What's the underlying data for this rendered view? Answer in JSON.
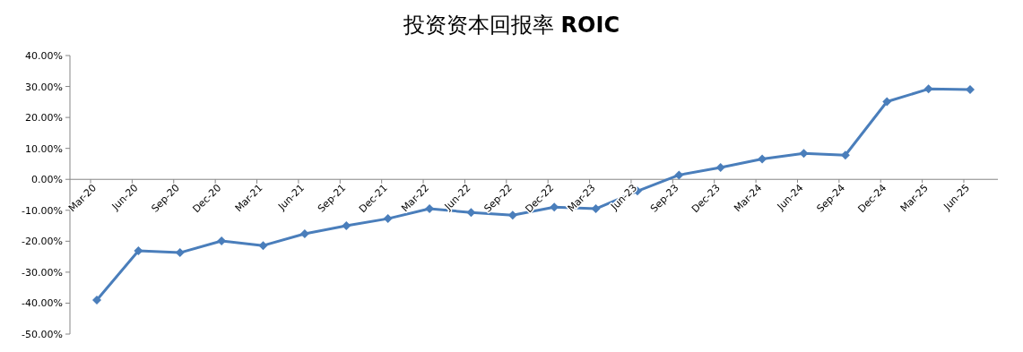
{
  "chart_data": {
    "type": "line",
    "title": "投资资本回报率 **ROIC**",
    "categories": [
      "Mar-20",
      "Jun-20",
      "Sep-20",
      "Dec-20",
      "Mar-21",
      "Jun-21",
      "Sep-21",
      "Dec-21",
      "Mar-22",
      "Jun-22",
      "Sep-22",
      "Dec-22",
      "Mar-23",
      "Jun-23",
      "Sep-23",
      "Dec-23",
      "Mar-24",
      "Jun-24",
      "Sep-24",
      "Dec-24",
      "Mar-25",
      "Jun-25"
    ],
    "series": [
      {
        "color": "#4a7ebb",
        "values": [
          -39.0,
          -23.1,
          -23.7,
          -19.9,
          -21.4,
          -17.6,
          -15.0,
          -12.7,
          -9.5,
          -10.7,
          -11.6,
          -9.0,
          -9.5,
          -3.8,
          1.4,
          3.8,
          6.6,
          8.4,
          7.8,
          25.1,
          29.2,
          29.0
        ]
      }
    ],
    "ylim": [
      -50,
      40
    ],
    "yticks": [
      {
        "value": -50,
        "label": "-50.00%"
      },
      {
        "value": -40,
        "label": "-40.00%"
      },
      {
        "value": -30,
        "label": "-30.00%"
      },
      {
        "value": -20,
        "label": "-20.00%"
      },
      {
        "value": -10,
        "label": "-10.00%"
      },
      {
        "value": 0,
        "label": "0.00%"
      },
      {
        "value": 10,
        "label": "10.00%"
      },
      {
        "value": 20,
        "label": "20.00%"
      },
      {
        "value": 30,
        "label": "30.00%"
      },
      {
        "value": 40,
        "label": "40.00%"
      }
    ],
    "marker": "diamond",
    "line_style": "solid",
    "grid": false
  }
}
